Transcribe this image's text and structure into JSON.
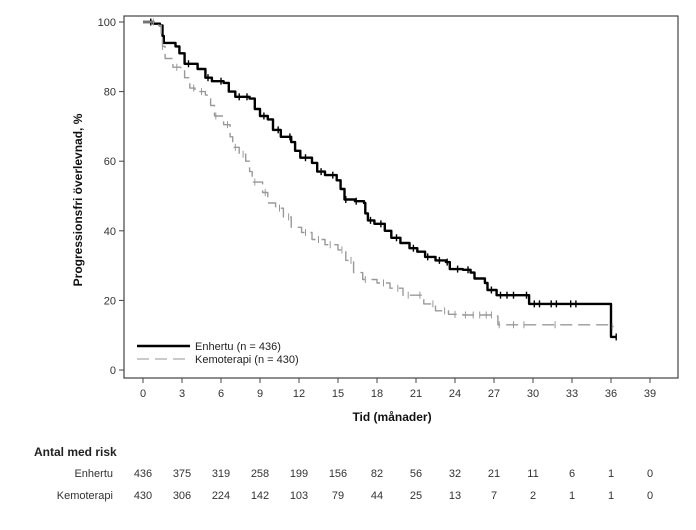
{
  "chart_data": {
    "type": "line",
    "subtype": "kaplan-meier",
    "title": "",
    "xlabel": "Tid (månader)",
    "ylabel": "Progressionsfri överlevnad, %",
    "xlim": [
      0,
      39
    ],
    "ylim": [
      0,
      100
    ],
    "x_ticks": [
      "0",
      "3",
      "6",
      "9",
      "12",
      "15",
      "18",
      "21",
      "24",
      "27",
      "30",
      "33",
      "36",
      "39"
    ],
    "y_ticks": [
      "0",
      "20",
      "40",
      "60",
      "80",
      "100"
    ],
    "grid": false,
    "legend_position": "bottom-left",
    "series": [
      {
        "name": "Enhertu (n = 436)",
        "color": "#000000",
        "style": "solid",
        "points": [
          [
            0,
            100
          ],
          [
            0.8,
            99.5
          ],
          [
            1.3,
            99
          ],
          [
            1.5,
            96
          ],
          [
            1.6,
            94
          ],
          [
            2.5,
            93
          ],
          [
            2.8,
            91
          ],
          [
            3.2,
            88
          ],
          [
            4.2,
            86.5
          ],
          [
            4.8,
            84
          ],
          [
            5.3,
            83
          ],
          [
            6.2,
            82.5
          ],
          [
            6.6,
            80
          ],
          [
            7.1,
            78.5
          ],
          [
            8.2,
            78
          ],
          [
            8.6,
            75
          ],
          [
            9,
            73
          ],
          [
            9.6,
            72
          ],
          [
            10,
            69
          ],
          [
            10.6,
            67
          ],
          [
            11.4,
            65.5
          ],
          [
            11.7,
            63
          ],
          [
            12.1,
            61
          ],
          [
            13,
            59.5
          ],
          [
            13.4,
            57
          ],
          [
            14,
            56
          ],
          [
            14.9,
            54.5
          ],
          [
            15.2,
            52
          ],
          [
            15.5,
            49
          ],
          [
            16.3,
            48.5
          ],
          [
            17,
            48
          ],
          [
            17.1,
            45
          ],
          [
            17.3,
            43
          ],
          [
            17.8,
            42
          ],
          [
            18.6,
            40
          ],
          [
            19.1,
            38
          ],
          [
            19.8,
            36.5
          ],
          [
            20.5,
            35
          ],
          [
            21.1,
            34
          ],
          [
            21.7,
            32.5
          ],
          [
            22.5,
            31.5
          ],
          [
            23.3,
            31
          ],
          [
            23.6,
            29
          ],
          [
            24.6,
            28.8
          ],
          [
            25.2,
            28
          ],
          [
            25.5,
            26.3
          ],
          [
            26.3,
            25
          ],
          [
            26.5,
            23
          ],
          [
            27.2,
            21.5
          ],
          [
            29.6,
            21.5
          ],
          [
            29.7,
            19
          ],
          [
            36,
            19
          ],
          [
            36,
            9.5
          ],
          [
            36.4,
            9.5
          ]
        ],
        "censor_months": [
          0.6,
          3.5,
          5,
          6,
          7.4,
          8,
          9.3,
          10.4,
          11.3,
          12.5,
          13.7,
          14.6,
          15.6,
          16.4,
          17.5,
          18.3,
          19.5,
          20.8,
          21.9,
          22.8,
          23.4,
          24.2,
          25,
          26.8,
          27.5,
          28,
          28.5,
          29.5,
          30.1,
          30.5,
          31.4,
          31.8,
          32.9,
          33.3,
          36.4
        ]
      },
      {
        "name": "Kemoterapi (n = 430)",
        "color": "#999999",
        "style": "dashed",
        "points": [
          [
            0,
            100
          ],
          [
            1.2,
            99
          ],
          [
            1.4,
            96
          ],
          [
            1.5,
            93
          ],
          [
            1.7,
            89.5
          ],
          [
            2.3,
            87
          ],
          [
            2.9,
            86
          ],
          [
            3.2,
            84
          ],
          [
            3.6,
            81
          ],
          [
            4,
            80
          ],
          [
            4.8,
            79
          ],
          [
            5.2,
            76
          ],
          [
            5.5,
            73
          ],
          [
            6.2,
            70.5
          ],
          [
            6.7,
            67
          ],
          [
            6.9,
            64
          ],
          [
            7.4,
            62
          ],
          [
            7.9,
            60
          ],
          [
            8.2,
            57
          ],
          [
            8.4,
            54
          ],
          [
            9.2,
            51
          ],
          [
            9.6,
            48
          ],
          [
            10.2,
            46.5
          ],
          [
            10.8,
            44
          ],
          [
            11.4,
            41
          ],
          [
            12.2,
            39.5
          ],
          [
            13,
            37.5
          ],
          [
            14,
            36
          ],
          [
            15,
            34.5
          ],
          [
            15.6,
            31.5
          ],
          [
            16.2,
            28
          ],
          [
            16.9,
            26
          ],
          [
            18,
            25
          ],
          [
            19,
            23.5
          ],
          [
            20,
            21.5
          ],
          [
            21.6,
            19
          ],
          [
            22.5,
            17
          ],
          [
            23.5,
            16
          ],
          [
            24.6,
            15.8
          ],
          [
            27.2,
            15.5
          ],
          [
            27.3,
            13
          ],
          [
            36,
            13
          ],
          [
            36,
            12.5
          ],
          [
            36.2,
            12.5
          ]
        ],
        "censor_months": [
          0.8,
          1.5,
          2.6,
          3.9,
          4.5,
          5.6,
          6.5,
          7.1,
          7.7,
          8.6,
          9.4,
          10.5,
          11.2,
          12.5,
          13.5,
          14.4,
          15.3,
          16,
          17.1,
          18.5,
          19.6,
          20.4,
          21.3,
          22.3,
          23.2,
          24,
          24.8,
          25.4,
          25.9,
          26.4,
          26.8,
          27.4,
          28.5,
          29.3,
          31.7,
          36.1
        ]
      }
    ],
    "risk_table": {
      "title": "Antal med risk",
      "timepoints": [
        0,
        3,
        6,
        9,
        12,
        15,
        18,
        21,
        24,
        27,
        30,
        33,
        36,
        39
      ],
      "rows": [
        {
          "label": "Enhertu",
          "values": [
            "436",
            "375",
            "319",
            "258",
            "199",
            "156",
            "82",
            "56",
            "32",
            "21",
            "11",
            "6",
            "1",
            "0"
          ]
        },
        {
          "label": "Kemoterapi",
          "values": [
            "430",
            "306",
            "224",
            "142",
            "103",
            "79",
            "44",
            "25",
            "13",
            "7",
            "2",
            "1",
            "1",
            "0"
          ]
        }
      ]
    }
  }
}
